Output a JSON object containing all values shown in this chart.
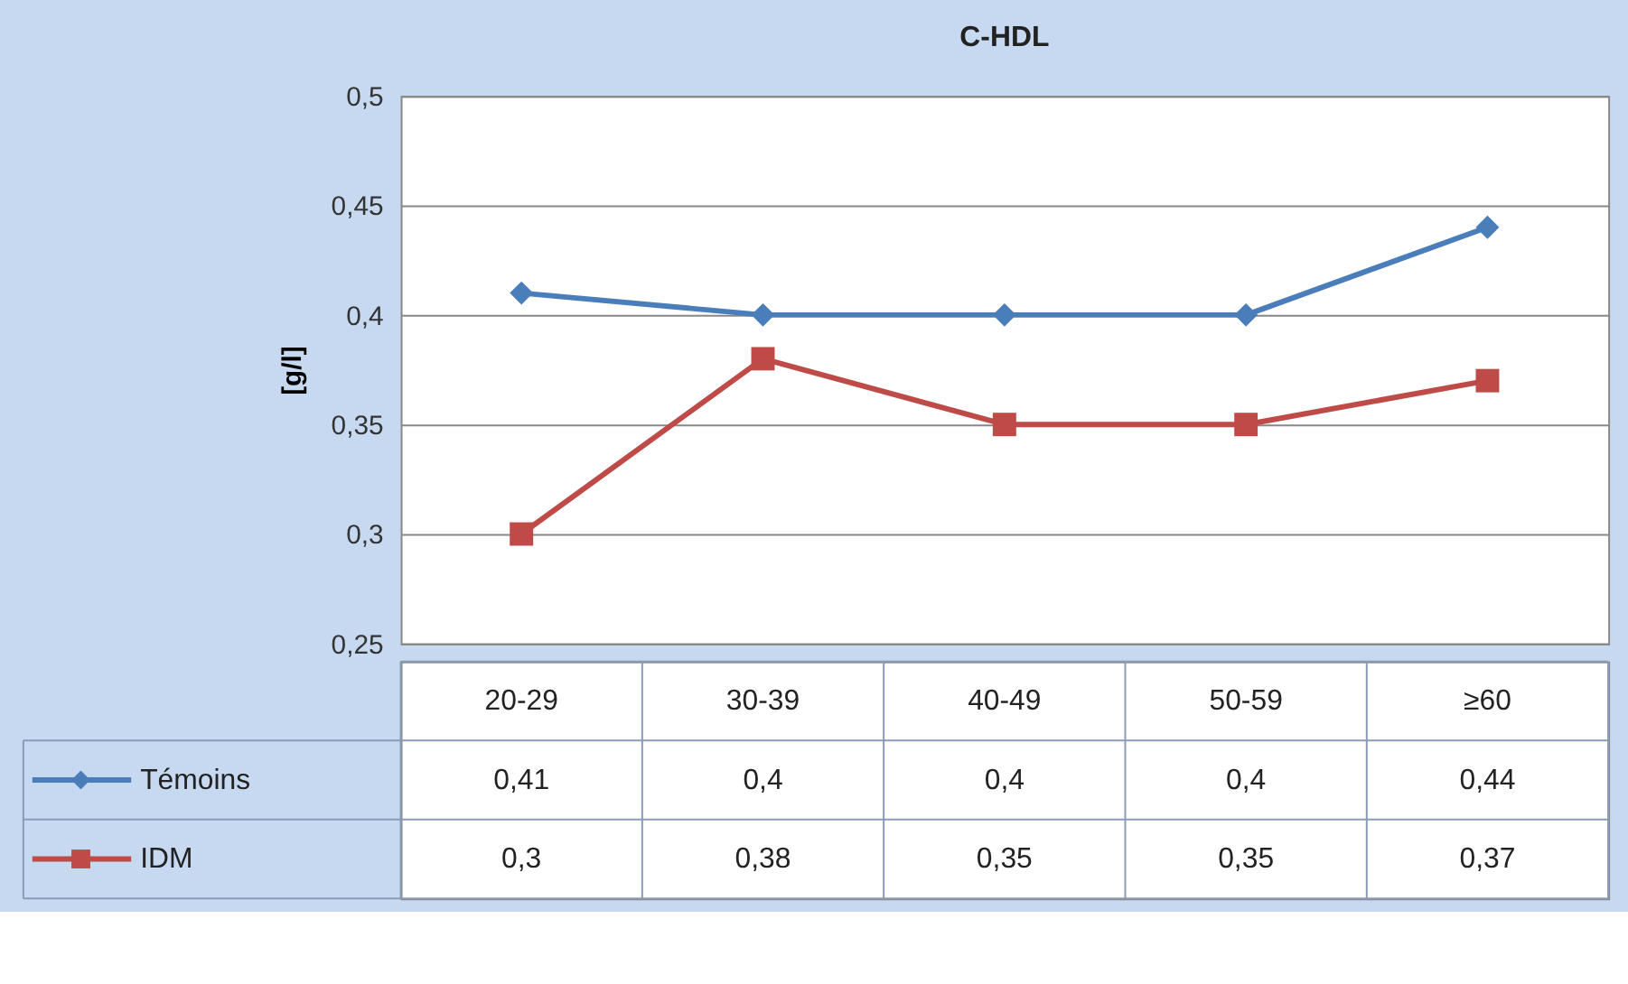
{
  "chart_data": {
    "type": "line",
    "title": "C-HDL",
    "ylabel": "[g/l]",
    "categories": [
      "20-29",
      "30-39",
      "40-49",
      "50-59",
      "≥60"
    ],
    "series": [
      {
        "name": "Témoins",
        "color": "#4a7ebb",
        "marker": "diamond",
        "values": [
          0.41,
          0.4,
          0.4,
          0.4,
          0.44
        ],
        "value_labels": [
          "0,41",
          "0,4",
          "0,4",
          "0,4",
          "0,44"
        ]
      },
      {
        "name": "IDM",
        "color": "#be4b48",
        "marker": "square",
        "values": [
          0.3,
          0.38,
          0.35,
          0.35,
          0.37
        ],
        "value_labels": [
          "0,3",
          "0,38",
          "0,35",
          "0,35",
          "0,37"
        ]
      }
    ],
    "ylim": [
      0.25,
      0.5
    ],
    "yticks": [
      {
        "value": 0.25,
        "label": "0,25"
      },
      {
        "value": 0.3,
        "label": "0,3"
      },
      {
        "value": 0.35,
        "label": "0,35"
      },
      {
        "value": 0.4,
        "label": "0,4"
      },
      {
        "value": 0.45,
        "label": "0,45"
      },
      {
        "value": 0.5,
        "label": "0,5"
      }
    ],
    "grid": "y",
    "legend": "bottom left",
    "line_style": "solid"
  }
}
